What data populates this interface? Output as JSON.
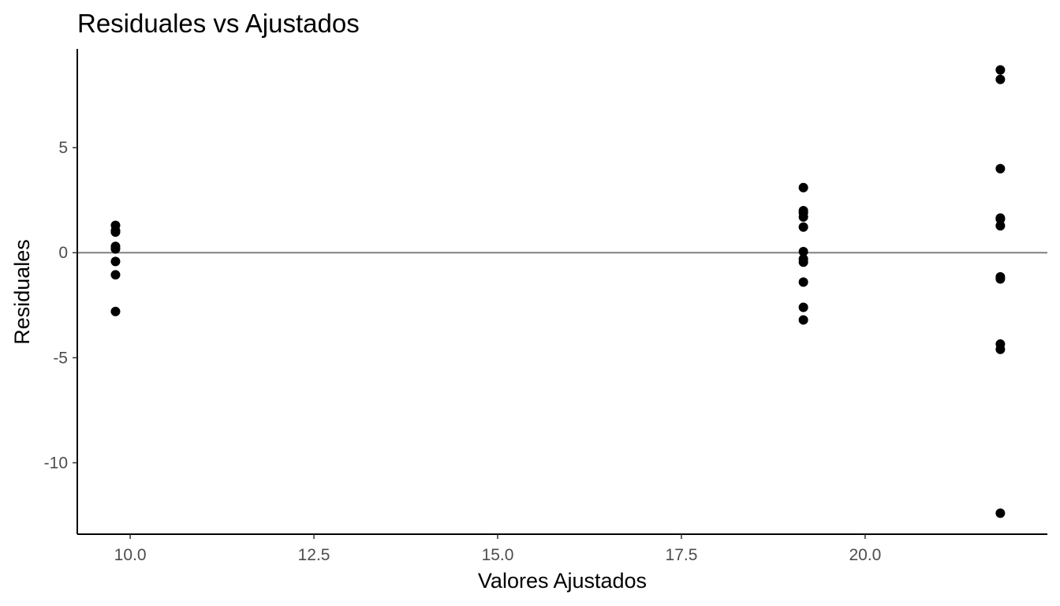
{
  "chart_data": {
    "type": "scatter",
    "title": "Residuales vs Ajustados",
    "xlabel": "Valores Ajustados",
    "ylabel": "Residuales",
    "xlim": [
      9.28,
      22.48
    ],
    "ylim": [
      -13.4,
      9.7
    ],
    "xticks": [
      10.0,
      12.5,
      15.0,
      17.5,
      20.0
    ],
    "xtick_labels": [
      "10.0",
      "12.5",
      "15.0",
      "17.5",
      "20.0"
    ],
    "yticks": [
      5,
      0,
      -5,
      -10
    ],
    "ytick_labels": [
      "5",
      "0",
      "-5",
      "-10"
    ],
    "reference_line": {
      "y": 0,
      "color": "#808080"
    },
    "point_color": "#000000",
    "grid": false,
    "legend": "none",
    "series": [
      {
        "x": [
          9.8,
          9.8,
          9.8,
          9.8,
          9.8,
          9.8,
          9.8,
          9.8,
          19.16,
          19.16,
          19.16,
          19.16,
          19.16,
          19.16,
          19.16,
          19.16,
          19.16,
          19.16,
          19.16,
          21.84,
          21.84,
          21.84,
          21.84,
          21.84,
          21.84,
          21.84,
          21.84,
          21.84,
          21.84,
          21.84
        ],
        "y": [
          1.3,
          0.98,
          0.3,
          0.18,
          -0.42,
          -1.05,
          -2.8,
          1.05,
          3.1,
          2.0,
          1.7,
          1.22,
          0.05,
          -0.3,
          -0.45,
          -1.4,
          -2.6,
          -3.2,
          1.9,
          8.7,
          8.25,
          4.0,
          1.65,
          1.28,
          -1.15,
          -1.25,
          -4.35,
          -4.6,
          -12.4,
          1.6
        ]
      }
    ]
  }
}
